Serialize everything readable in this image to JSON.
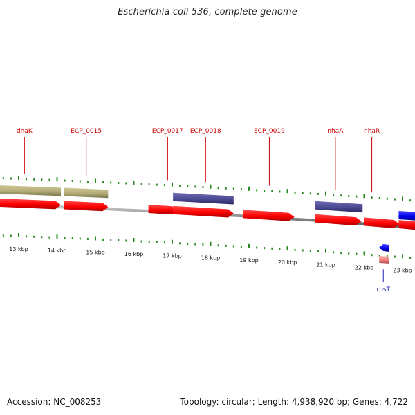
{
  "title": "Escherichia coli 536, complete genome",
  "footer": {
    "accession": "Accession: NC_008253",
    "summary": "Topology: circular; Length: 4,938,920 bp; Genes: 4,722"
  },
  "colors": {
    "cds": "#ff0000",
    "cds_light": "#f08080",
    "olive": "#b3ac78",
    "purple": "#4a4890",
    "blue": "#0000ee",
    "tick": "#2a8a22",
    "backbone": "#8a8a8a",
    "label_red": "#cc0000",
    "label_blue": "#2020bb"
  },
  "ruler": {
    "labels": [
      {
        "text": "13 kbp",
        "pos": 13000
      },
      {
        "text": "14 kbp",
        "pos": 14000
      },
      {
        "text": "15 kbp",
        "pos": 15000
      },
      {
        "text": "16 kbp",
        "pos": 16000
      },
      {
        "text": "17 kbp",
        "pos": 17000
      },
      {
        "text": "18 kbp",
        "pos": 18000
      },
      {
        "text": "19 kbp",
        "pos": 19000
      },
      {
        "text": "20 kbp",
        "pos": 20000
      },
      {
        "text": "21 kbp",
        "pos": 21000
      },
      {
        "text": "22 kbp",
        "pos": 22000
      },
      {
        "text": "23 kbp",
        "pos": 23000
      }
    ],
    "minor_step_bp": 200
  },
  "features": [
    {
      "type": "olive",
      "strand": "+",
      "start": 12400,
      "end": 14100
    },
    {
      "type": "olive",
      "strand": "+",
      "start": 14180,
      "end": 15330
    },
    {
      "type": "purple",
      "strand": "+",
      "start": 17020,
      "end": 18600
    },
    {
      "type": "purple",
      "strand": "+",
      "start": 20730,
      "end": 21960
    },
    {
      "type": "blue",
      "strand": "+",
      "start": 22900,
      "end": 23500
    },
    {
      "type": "cds",
      "strand": "+",
      "start": 12400,
      "end": 14100
    },
    {
      "type": "cds",
      "strand": "+",
      "start": 14180,
      "end": 15330
    },
    {
      "type": "cds",
      "strand": "+",
      "start": 16380,
      "end": 17140
    },
    {
      "type": "cds",
      "strand": "+",
      "start": 17020,
      "end": 18600
    },
    {
      "type": "cds",
      "strand": "+",
      "start": 18850,
      "end": 20180
    },
    {
      "type": "cds",
      "strand": "+",
      "start": 20730,
      "end": 21930
    },
    {
      "type": "cds",
      "strand": "+",
      "start": 21990,
      "end": 22920
    },
    {
      "type": "cds",
      "strand": "+",
      "start": 22900,
      "end": 23500
    },
    {
      "type": "blue",
      "strand": "-",
      "start": 22390,
      "end": 22650
    },
    {
      "type": "cds_light",
      "strand": "-",
      "start": 22390,
      "end": 22650
    }
  ],
  "gene_labels": [
    {
      "text": "dnaK",
      "pos": 13150,
      "side": "top",
      "color": "label_red"
    },
    {
      "text": "ECP_0015",
      "pos": 14760,
      "side": "top",
      "color": "label_red"
    },
    {
      "text": "ECP_0017",
      "pos": 16880,
      "side": "top",
      "color": "label_red"
    },
    {
      "text": "ECP_0018",
      "pos": 17870,
      "side": "top",
      "color": "label_red"
    },
    {
      "text": "ECP_0019",
      "pos": 19530,
      "side": "top",
      "color": "label_red"
    },
    {
      "text": "nhaA",
      "pos": 21250,
      "side": "top",
      "color": "label_red"
    },
    {
      "text": "nhaR",
      "pos": 22200,
      "side": "top",
      "color": "label_red"
    },
    {
      "text": "rpsT",
      "pos": 22500,
      "side": "bottom",
      "color": "label_blue"
    }
  ]
}
